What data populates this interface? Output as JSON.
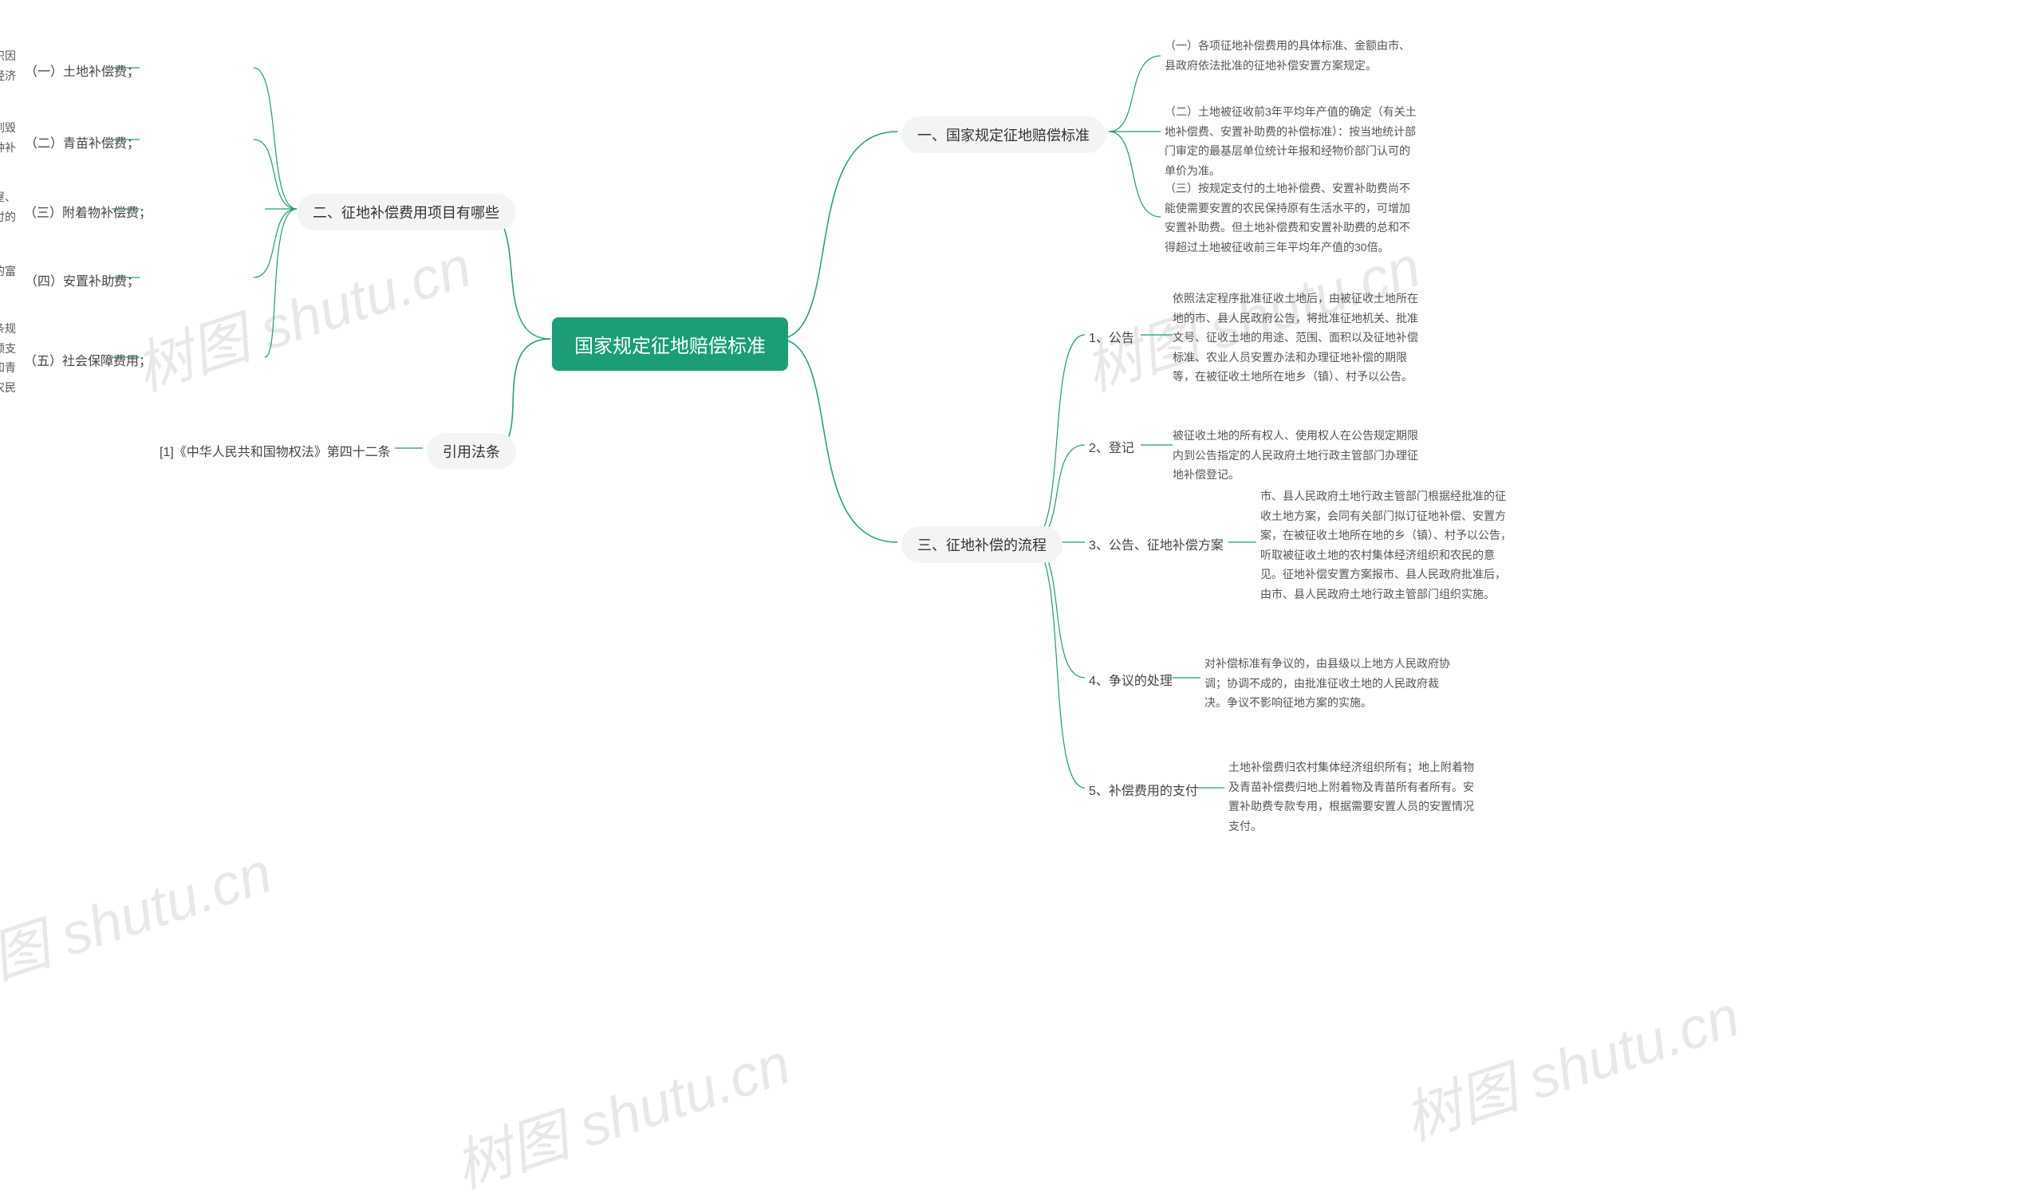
{
  "colors": {
    "root_bg": "#1b9e77",
    "root_text": "#ffffff",
    "pill_bg": "#f3f4f5",
    "pill_text": "#333333",
    "label_text": "#444444",
    "desc_text": "#555555",
    "link": "#1b9e77",
    "watermark": "#e8e8e8",
    "page_bg": "#ffffff"
  },
  "watermark_text": "树图 shutu.cn",
  "root": {
    "label": "国家规定征地赔偿标准"
  },
  "right": {
    "branch1": {
      "label": "一、国家规定征地赔偿标准",
      "items": [
        {
          "text": "（一）各项征地补偿费用的具体标准、金额由市、县政府依法批准的征地补偿安置方案规定。"
        },
        {
          "text": "（二）土地被征收前3年平均年产值的确定（有关土地补偿费、安置补助费的补偿标准）：按当地统计部门审定的最基层单位统计年报和经物价部门认可的单价为准。"
        },
        {
          "text": "（三）按规定支付的土地补偿费、安置补助费尚不能使需要安置的农民保持原有生活水平的，可增加安置补助费。但土地补偿费和安置补助费的总和不得超过土地被征收前三年平均年产值的30倍。"
        }
      ]
    },
    "branch3": {
      "label": "三、征地补偿的流程",
      "items": [
        {
          "label": "1、公告",
          "text": "依照法定程序批准征收土地后，由被征收土地所在地的市、县人民政府公告，将批准征地机关、批准文号、征收土地的用途、范围、面积以及征地补偿标准、农业人员安置办法和办理征地补偿的期限等，在被征收土地所在地乡（镇）、村予以公告。"
        },
        {
          "label": "2、登记",
          "text": "被征收土地的所有权人、使用权人在公告规定期限内到公告指定的人民政府土地行政主管部门办理征地补偿登记。"
        },
        {
          "label": "3、公告、征地补偿方案",
          "text": "市、县人民政府土地行政主管部门根据经批准的征收土地方案，会同有关部门拟订征地补偿、安置方案，在被征收土地所在地的乡（镇）、村予以公告，听取被征收土地的农村集体经济组织和农民的意见。征地补偿安置方案报市、县人民政府批准后，由市、县人民政府土地行政主管部门组织实施。"
        },
        {
          "label": "4、争议的处理",
          "text": "对补偿标准有争议的，由县级以上地方人民政府协调；协调不成的，由批准征收土地的人民政府裁决。争议不影响征地方案的实施。"
        },
        {
          "label": "5、补偿费用的支付",
          "text": "土地补偿费归农村集体经济组织所有；地上附着物及青苗补偿费归地上附着物及青苗所有者所有。安置补助费专款专用，根据需要安置人员的安置情况支付。"
        }
      ]
    }
  },
  "left": {
    "branch2": {
      "label": "二、征地补偿费用项目有哪些",
      "items": [
        {
          "label": "（一）土地补偿费；",
          "text": "用地单位依法对被征地的农村集体经济组织因其土地被征收造成经济损失而支付的一种经济补偿。"
        },
        {
          "label": "（二）青苗补偿费；",
          "text": "用地单位对被征收土地上的青苗因征地受到毁损，向种植该青苗的单位和个人支付的一种补偿费用。"
        },
        {
          "label": "（三）附着物补偿费；",
          "text": "用地单位对被征收土地上的附着物，如房屋、其它设施，因征地被毁损而向该所在人支付的一种补偿费用。"
        },
        {
          "label": "（四）安置补助费；",
          "text": "用地单位对被征地单位安置因征地所造成的富余劳动力而支付的补偿费用。"
        },
        {
          "label": "（五）社会保障费用；",
          "text": "根据《中华人民共和国物权法》第四十二条规定，征收集体所有的土地，除应当依法足额支付土地补偿费、安置补助费、地上附着物和青苗的补偿费等费用外，还应当安排被征地农民的社会保障费用，保障被征地农民的生活。"
        }
      ]
    },
    "branch_ref": {
      "label": "引用法条",
      "items": [
        {
          "text": "[1]《中华人民共和国物权法》第四十二条"
        }
      ]
    }
  }
}
